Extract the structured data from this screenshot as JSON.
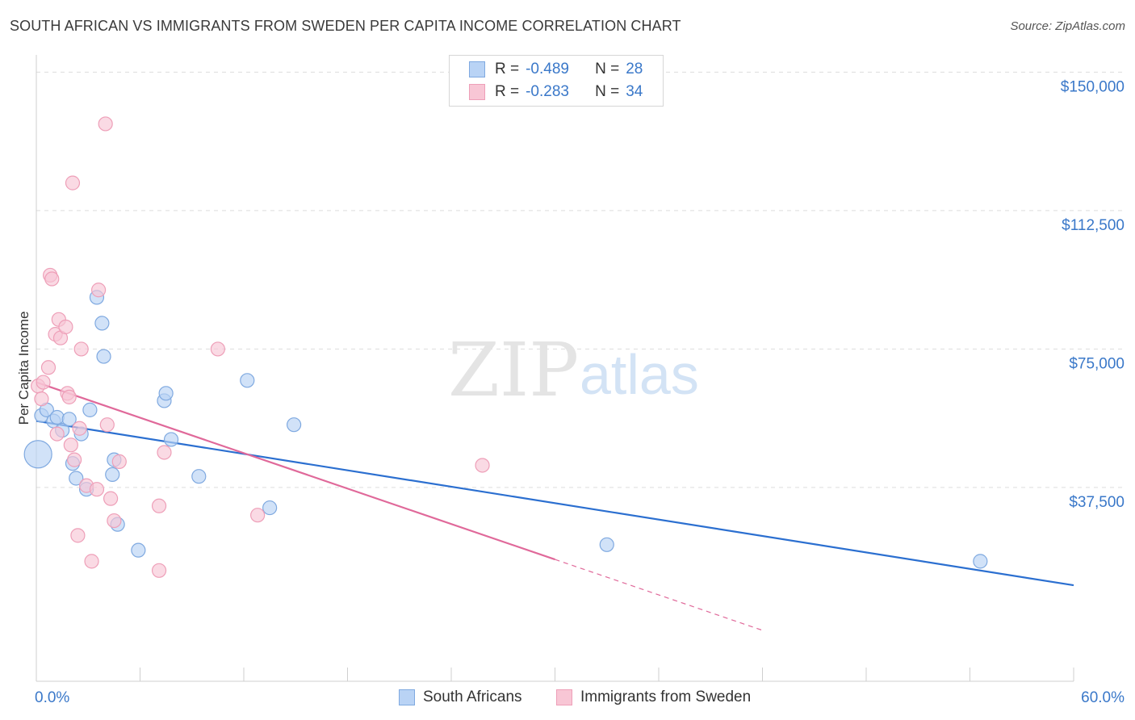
{
  "title": "SOUTH AFRICAN VS IMMIGRANTS FROM SWEDEN PER CAPITA INCOME CORRELATION CHART",
  "source": "Source: ZipAtlas.com",
  "watermark": {
    "zip": "ZIP",
    "atlas": "atlas"
  },
  "colors": {
    "blue_fill": "#b9d3f5",
    "blue_stroke": "#7fa9e0",
    "blue_line": "#2b6fd0",
    "pink_fill": "#f8c6d5",
    "pink_stroke": "#ee9fb8",
    "pink_line": "#e0699a",
    "axis_text": "#3a78c9",
    "grid": "#dddddd"
  },
  "legend": {
    "rows": [
      {
        "r_label": "R =",
        "r_value": "-0.489",
        "n_label": "N =",
        "n_value": "28"
      },
      {
        "r_label": "R =",
        "r_value": "-0.283",
        "n_label": "N =",
        "n_value": "34"
      }
    ]
  },
  "bottom_legend": {
    "series1": "South Africans",
    "series2": "Immigrants from Sweden"
  },
  "chart_data": {
    "type": "scatter",
    "title": "SOUTH AFRICAN VS IMMIGRANTS FROM SWEDEN PER CAPITA INCOME CORRELATION CHART",
    "xlabel": "",
    "ylabel": "Per Capita Income",
    "xlim": [
      0,
      60
    ],
    "ylim": [
      -15000,
      152500
    ],
    "x_tick_labels": [
      "0.0%",
      "60.0%"
    ],
    "y_ticks": [
      37500,
      75000,
      112500,
      150000
    ],
    "y_tick_labels": [
      "$37,500",
      "$75,000",
      "$112,500",
      "$150,000"
    ],
    "grid": true,
    "series": [
      {
        "name": "South Africans",
        "color": "blue",
        "points": [
          [
            0.1,
            46500,
            3
          ],
          [
            0.3,
            57000,
            1
          ],
          [
            0.6,
            58500,
            1
          ],
          [
            1.0,
            55500,
            1
          ],
          [
            1.2,
            56500,
            1
          ],
          [
            1.5,
            53000,
            1
          ],
          [
            1.9,
            56000,
            1
          ],
          [
            2.1,
            44000,
            1
          ],
          [
            2.3,
            40000,
            1
          ],
          [
            2.6,
            52000,
            1
          ],
          [
            2.9,
            37000,
            1
          ],
          [
            3.1,
            58500,
            1
          ],
          [
            3.5,
            89000,
            1
          ],
          [
            3.8,
            82000,
            1
          ],
          [
            3.9,
            73000,
            1
          ],
          [
            4.4,
            41000,
            1
          ],
          [
            4.5,
            45000,
            1
          ],
          [
            4.7,
            27500,
            1
          ],
          [
            5.9,
            20500,
            1
          ],
          [
            7.4,
            61000,
            1
          ],
          [
            7.5,
            63000,
            1
          ],
          [
            7.8,
            50500,
            1
          ],
          [
            9.4,
            40500,
            1
          ],
          [
            12.2,
            66500,
            1
          ],
          [
            13.5,
            32000,
            1
          ],
          [
            14.9,
            54500,
            1
          ],
          [
            33.0,
            22000,
            1
          ],
          [
            54.6,
            17500,
            1
          ]
        ],
        "trend": {
          "x0": 0,
          "y0": 55500,
          "x1": 60,
          "y1": 11000
        }
      },
      {
        "name": "Immigrants from Sweden",
        "color": "pink",
        "points": [
          [
            0.1,
            65000,
            1
          ],
          [
            0.3,
            61500,
            1
          ],
          [
            0.4,
            66000,
            1
          ],
          [
            0.7,
            70000,
            1
          ],
          [
            0.8,
            95000,
            1
          ],
          [
            0.9,
            94000,
            1
          ],
          [
            1.1,
            79000,
            1
          ],
          [
            1.2,
            52000,
            1
          ],
          [
            1.3,
            83000,
            1
          ],
          [
            1.4,
            78000,
            1
          ],
          [
            1.7,
            81000,
            1
          ],
          [
            1.8,
            63000,
            1
          ],
          [
            1.9,
            62000,
            1
          ],
          [
            2.0,
            49000,
            1
          ],
          [
            2.1,
            120000,
            1
          ],
          [
            2.2,
            45000,
            1
          ],
          [
            2.4,
            24500,
            1
          ],
          [
            2.5,
            53500,
            1
          ],
          [
            2.6,
            75000,
            1
          ],
          [
            2.9,
            38000,
            1
          ],
          [
            3.2,
            17500,
            1
          ],
          [
            3.5,
            37000,
            1
          ],
          [
            3.6,
            91000,
            1
          ],
          [
            4.0,
            136000,
            1
          ],
          [
            4.1,
            54500,
            1
          ],
          [
            4.3,
            34500,
            1
          ],
          [
            4.5,
            28500,
            1
          ],
          [
            4.8,
            44500,
            1
          ],
          [
            7.1,
            32500,
            1
          ],
          [
            7.1,
            15000,
            1
          ],
          [
            7.4,
            47000,
            1
          ],
          [
            10.5,
            75000,
            1
          ],
          [
            12.8,
            30000,
            1
          ],
          [
            25.8,
            43500,
            1
          ]
        ],
        "trend": {
          "x0": 0,
          "y0": 66000,
          "x1": 30,
          "y1": 18000,
          "dashed_to_x": 42
        }
      }
    ]
  }
}
